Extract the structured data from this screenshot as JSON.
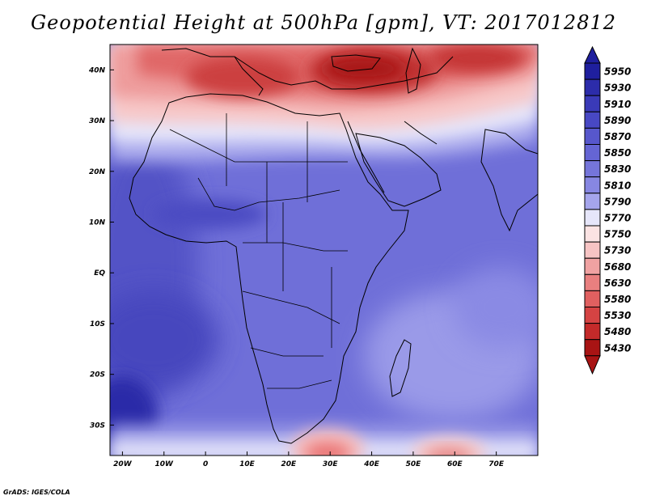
{
  "title": "Geopotential Height at 500hPa [gpm], VT: 2017012812",
  "credit": "GrADS: IGES/COLA",
  "chart_data": {
    "type": "heatmap",
    "title": "Geopotential Height at 500hPa [gpm], VT: 2017012812",
    "variable": "Geopotential Height",
    "level": "500hPa",
    "units": "gpm",
    "valid_time": "2017012812",
    "x_range": [
      -23,
      80
    ],
    "y_range": [
      -36,
      45
    ],
    "x_ticks": [
      {
        "value": -20,
        "label": "20W"
      },
      {
        "value": -10,
        "label": "10W"
      },
      {
        "value": 0,
        "label": "0"
      },
      {
        "value": 10,
        "label": "10E"
      },
      {
        "value": 20,
        "label": "20E"
      },
      {
        "value": 30,
        "label": "30E"
      },
      {
        "value": 40,
        "label": "40E"
      },
      {
        "value": 50,
        "label": "50E"
      },
      {
        "value": 60,
        "label": "60E"
      },
      {
        "value": 70,
        "label": "70E"
      }
    ],
    "y_ticks": [
      {
        "value": 40,
        "label": "40N"
      },
      {
        "value": 30,
        "label": "30N"
      },
      {
        "value": 20,
        "label": "20N"
      },
      {
        "value": 10,
        "label": "10N"
      },
      {
        "value": 0,
        "label": "EQ"
      },
      {
        "value": -10,
        "label": "10S"
      },
      {
        "value": -20,
        "label": "20S"
      },
      {
        "value": -30,
        "label": "30S"
      }
    ],
    "colorbar": {
      "levels": [
        "5950",
        "5930",
        "5910",
        "5890",
        "5870",
        "5850",
        "5830",
        "5810",
        "5790",
        "5770",
        "5750",
        "5730",
        "5680",
        "5630",
        "5580",
        "5530",
        "5480",
        "5430"
      ],
      "colors": [
        "#1f1f9e",
        "#2c2caa",
        "#3a3ab8",
        "#4848c4",
        "#5757cc",
        "#6565d4",
        "#7575da",
        "#8787e2",
        "#a5a5ec",
        "#e6e6fa",
        "#fbe3e3",
        "#f7c4c4",
        "#f0a2a2",
        "#e97f7f",
        "#e06060",
        "#d54343",
        "#c42a2a",
        "#a81414"
      ]
    },
    "field_sketch": {
      "high_centers": [
        {
          "lon": -22,
          "lat": -30,
          "value": 5950
        },
        {
          "lon": -15,
          "lat": -12,
          "value": 5900
        },
        {
          "lon": -2,
          "lat": 11,
          "value": 5880
        }
      ],
      "low_centers": [
        {
          "lon": 36,
          "lat": 39,
          "value": 5430
        },
        {
          "lon": 8,
          "lat": 36,
          "value": 5580
        },
        {
          "lon": 28,
          "lat": -36,
          "value": 5650
        },
        {
          "lon": 58,
          "lat": -36,
          "value": 5700
        }
      ]
    }
  }
}
